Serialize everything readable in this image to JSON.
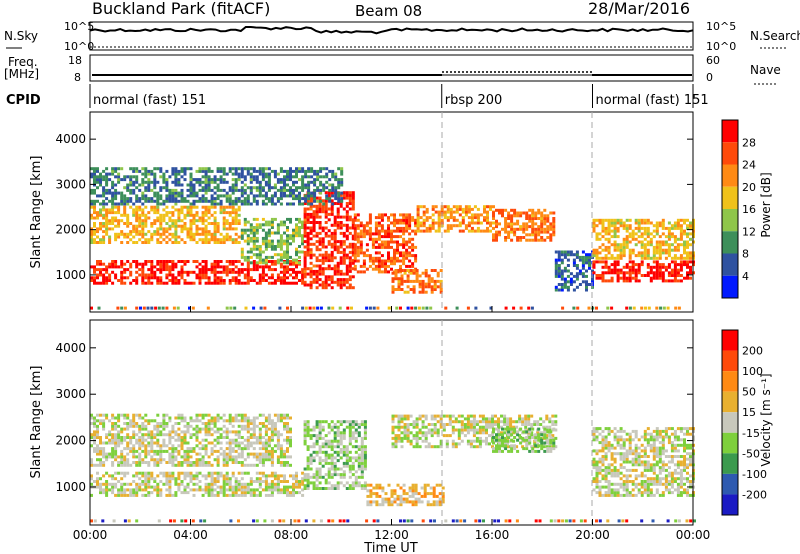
{
  "header": {
    "station": "Buckland Park (fitACF)",
    "beam": "Beam 08",
    "date": "28/Mar/2016"
  },
  "strip_panels": {
    "nsky_label": "N.Sky",
    "nsearch_label": "N.Search",
    "freq_label_1": "Freq.",
    "freq_label_2": "[MHz]",
    "nave_label": "Nave",
    "cpid_label": "CPID",
    "noise_ticks": [
      "10^5",
      "10^0"
    ],
    "freq_ticks": [
      "18",
      "8"
    ],
    "nave_ticks": [
      "60",
      "0"
    ]
  },
  "cpid_segments": [
    {
      "label": "normal (fast) 151",
      "start": 0,
      "end": 14
    },
    {
      "label": "rbsp 200",
      "start": 14,
      "end": 20
    },
    {
      "label": "normal (fast) 151",
      "start": 20,
      "end": 24
    }
  ],
  "colorbars": {
    "power": {
      "label": "Power [dB]",
      "ticks": [
        "28",
        "24",
        "20",
        "16",
        "12",
        "8",
        "4"
      ],
      "colors": [
        "#0019ff",
        "#2f52a0",
        "#3d8f5a",
        "#8fc64a",
        "#f0c21a",
        "#ff8a14",
        "#ff4a0a",
        "#ff0000"
      ]
    },
    "velocity": {
      "label": "Velocity [m s⁻¹]",
      "ticks": [
        "200",
        "100",
        "50",
        "15",
        "-15",
        "-50",
        "-100",
        "-200"
      ],
      "colors": [
        "#1b1bc4",
        "#2e5ab0",
        "#3b9a4e",
        "#7ed03c",
        "#c8c8bc",
        "#e8b030",
        "#ff8a14",
        "#ff4a0a",
        "#ff0000"
      ]
    }
  },
  "chart_data": [
    {
      "type": "heatmap",
      "title": "Power",
      "xlabel": "",
      "ylabel": "Slant Range [km]",
      "xlim": [
        0,
        24
      ],
      "ylim": [
        180,
        4600
      ],
      "yticks": [
        "4000",
        "3000",
        "2000",
        "1000"
      ],
      "xticks": [
        "00:00",
        "04:00",
        "08:00",
        "12:00",
        "16:00",
        "20:00",
        "00:00"
      ],
      "cbar_range": [
        0,
        30
      ],
      "regions": [
        {
          "t": [
            0,
            8.5
          ],
          "r": [
            850,
            1350
          ],
          "v": 27
        },
        {
          "t": [
            0,
            6
          ],
          "r": [
            1750,
            2550
          ],
          "v": 18
        },
        {
          "t": [
            6,
            8.5
          ],
          "r": [
            1300,
            2300
          ],
          "v": 12
        },
        {
          "t": [
            8.5,
            10.5
          ],
          "r": [
            750,
            2900
          ],
          "v": 26
        },
        {
          "t": [
            10.5,
            13
          ],
          "r": [
            1100,
            2400
          ],
          "v": 24
        },
        {
          "t": [
            12,
            14
          ],
          "r": [
            650,
            1150
          ],
          "v": 22
        },
        {
          "t": [
            13,
            16
          ],
          "r": [
            2000,
            2600
          ],
          "v": 20
        },
        {
          "t": [
            16,
            18.5
          ],
          "r": [
            1800,
            2500
          ],
          "v": 22
        },
        {
          "t": [
            18.5,
            20
          ],
          "r": [
            700,
            1600
          ],
          "v": 6
        },
        {
          "t": [
            20,
            24
          ],
          "r": [
            900,
            1350
          ],
          "v": 28
        },
        {
          "t": [
            20,
            24
          ],
          "r": [
            1400,
            2300
          ],
          "v": 18
        },
        {
          "t": [
            0,
            10
          ],
          "r": [
            2600,
            3400
          ],
          "v": 8
        }
      ]
    },
    {
      "type": "heatmap",
      "title": "Velocity",
      "xlabel": "Time UT",
      "ylabel": "Slant Range [km]",
      "xlim": [
        0,
        24
      ],
      "ylim": [
        180,
        4600
      ],
      "yticks": [
        "4000",
        "3000",
        "2000",
        "1000"
      ],
      "xticks": [
        "00:00",
        "04:00",
        "08:00",
        "12:00",
        "16:00",
        "20:00",
        "00:00"
      ],
      "cbar_range": [
        -200,
        200
      ],
      "regions": [
        {
          "t": [
            0,
            8.5
          ],
          "r": [
            850,
            1350
          ],
          "v": 0
        },
        {
          "t": [
            0,
            8
          ],
          "r": [
            1500,
            2600
          ],
          "v": 0
        },
        {
          "t": [
            8.5,
            11
          ],
          "r": [
            1000,
            2500
          ],
          "v": -30
        },
        {
          "t": [
            11,
            14
          ],
          "r": [
            650,
            1100
          ],
          "v": 40
        },
        {
          "t": [
            12,
            18.5
          ],
          "r": [
            1900,
            2600
          ],
          "v": 0
        },
        {
          "t": [
            16,
            18.5
          ],
          "r": [
            1800,
            2300
          ],
          "v": -40
        },
        {
          "t": [
            20,
            24
          ],
          "r": [
            850,
            2300
          ],
          "v": 0
        }
      ]
    }
  ]
}
